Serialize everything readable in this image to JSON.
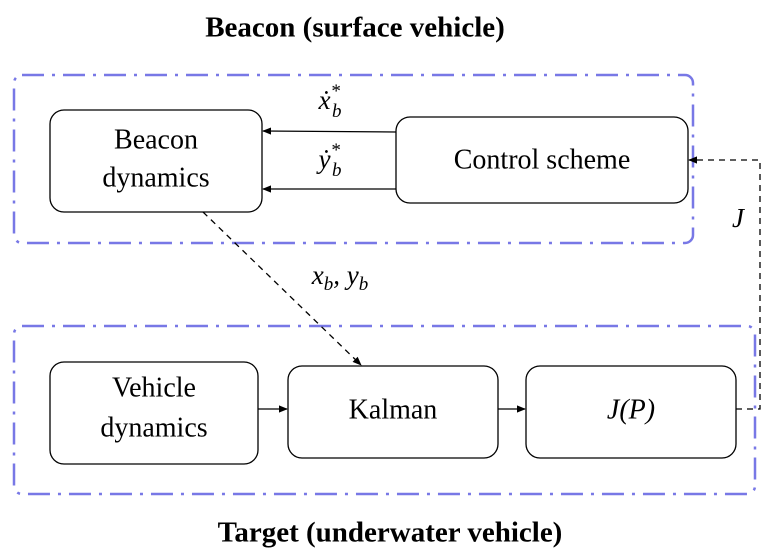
{
  "groups": [
    {
      "title": "Beacon (surface vehicle)"
    },
    {
      "title": "Target (underwater vehicle)"
    }
  ],
  "nodes": [
    {
      "lines": [
        "Beacon",
        "dynamics"
      ]
    },
    {
      "lines": [
        "Control scheme"
      ]
    },
    {
      "lines": [
        "Vehicle",
        "dynamics"
      ]
    },
    {
      "lines": [
        "Kalman"
      ]
    },
    {
      "lines": [
        "J(P)"
      ]
    }
  ],
  "edge_labels": [
    [
      {
        "text": "ẋ"
      },
      {
        "text": "*",
        "pos": "sup"
      },
      {
        "text": "b",
        "pos": "sub"
      }
    ],
    [
      {
        "text": "ẏ"
      },
      {
        "text": "*",
        "pos": "sup"
      },
      {
        "text": "b",
        "pos": "sub"
      }
    ],
    [
      {
        "text": "x"
      },
      {
        "text": "b",
        "pos": "sub"
      },
      {
        "text": ", "
      },
      {
        "text": "y"
      },
      {
        "text": "b",
        "pos": "sub"
      }
    ],
    [
      {
        "text": "J"
      }
    ]
  ]
}
